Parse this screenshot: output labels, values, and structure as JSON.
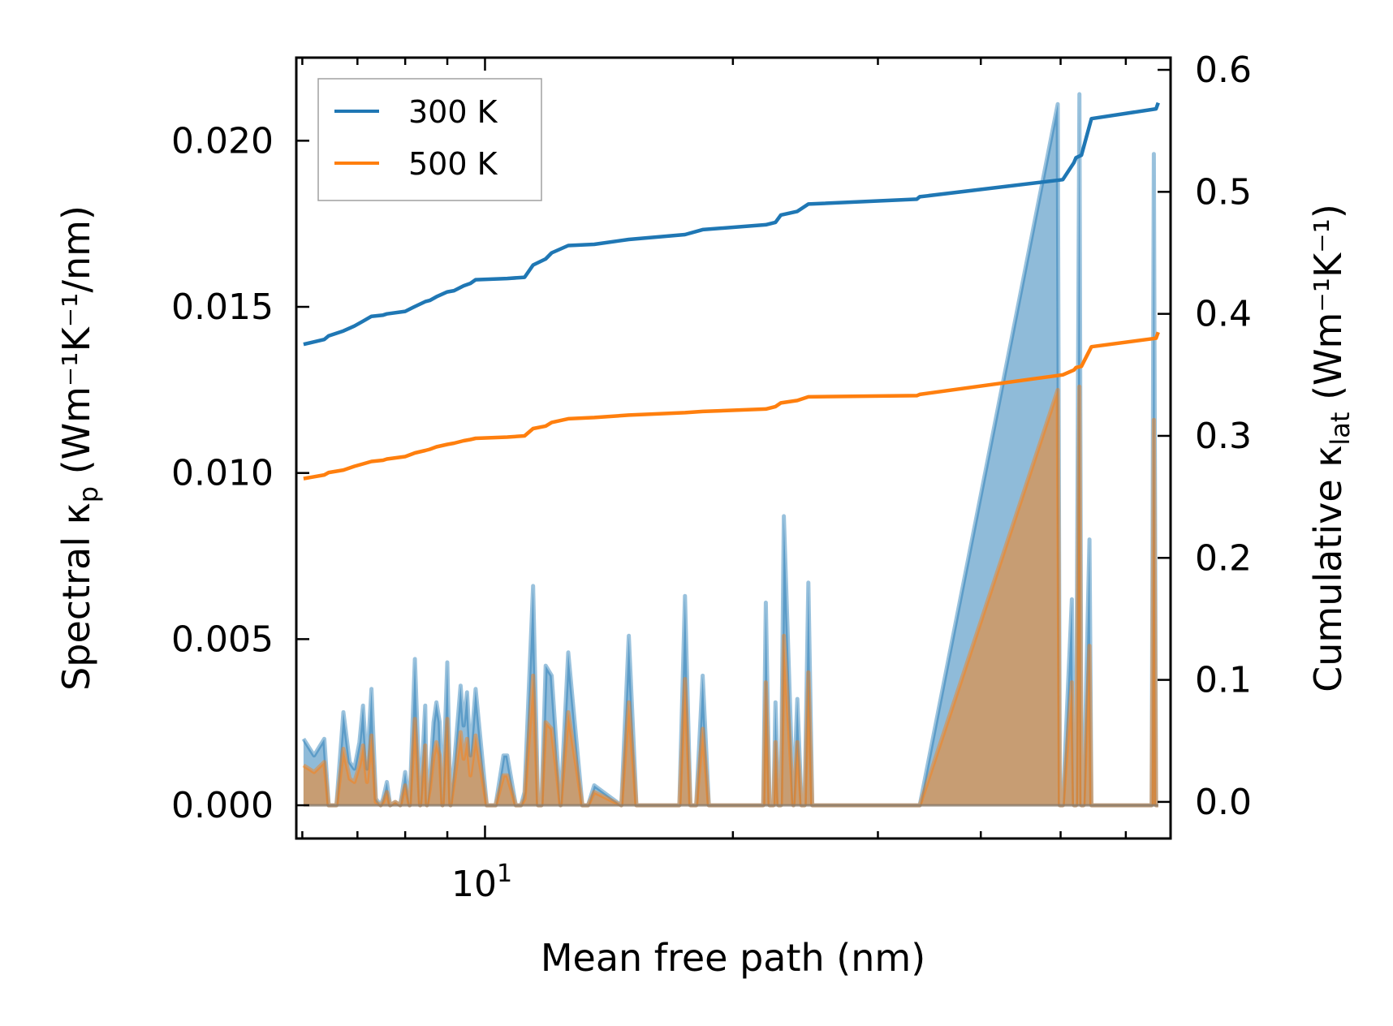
{
  "chart_data": {
    "type": "line",
    "title": "",
    "xlabel": "Mean free path (nm)",
    "ylabel_left": {
      "text": "Spectral κ",
      "sub": "p",
      "unit": "(Wm⁻¹K⁻¹/nm)"
    },
    "ylabel_right": {
      "text": "Cumulative κ",
      "sub": "lat",
      "unit": "(Wm⁻¹K⁻¹)"
    },
    "x_scale": "log",
    "xlim": [
      5.9,
      68
    ],
    "ylim_left": [
      -0.001,
      0.0225
    ],
    "ylim_right": [
      -0.03,
      0.61
    ],
    "x_tick_label": {
      "base": "10",
      "exp": "1"
    },
    "y_ticks_left": [
      {
        "value": 0.0,
        "label": "0.000"
      },
      {
        "value": 0.005,
        "label": "0.005"
      },
      {
        "value": 0.01,
        "label": "0.010"
      },
      {
        "value": 0.015,
        "label": "0.015"
      },
      {
        "value": 0.02,
        "label": "0.020"
      }
    ],
    "y_ticks_right": [
      {
        "value": 0.0,
        "label": "0.0"
      },
      {
        "value": 0.1,
        "label": "0.1"
      },
      {
        "value": 0.2,
        "label": "0.2"
      },
      {
        "value": 0.3,
        "label": "0.3"
      },
      {
        "value": 0.4,
        "label": "0.4"
      },
      {
        "value": 0.5,
        "label": "0.5"
      },
      {
        "value": 0.6,
        "label": "0.6"
      }
    ],
    "legend": {
      "position": "top-left",
      "entries": [
        "300 K",
        "500 K"
      ]
    },
    "series_colors": {
      "300 K": "#1f77b4",
      "500 K": "#ff7f0e"
    },
    "spectral_series": [
      {
        "name": "300 K",
        "axis": "left",
        "x": [
          6.02,
          6.2,
          6.38,
          6.46,
          6.6,
          6.73,
          6.85,
          6.94,
          7.04,
          7.11,
          7.19,
          7.28,
          7.37,
          7.47,
          7.52,
          7.6,
          7.67,
          7.78,
          7.89,
          8.0,
          8.1,
          8.22,
          8.34,
          8.46,
          8.5,
          8.57,
          8.66,
          8.73,
          8.81,
          8.88,
          9.0,
          9.08,
          9.17,
          9.34,
          9.42,
          9.51,
          9.6,
          9.74,
          10.05,
          10.3,
          10.53,
          10.64,
          10.9,
          11.06,
          11.17,
          11.44,
          11.6,
          11.71,
          11.85,
          12.05,
          12.35,
          12.62,
          13.13,
          13.34,
          13.57,
          14.64,
          14.95,
          15.27,
          17.22,
          17.49,
          17.76,
          18.05,
          18.38,
          18.7,
          21.77,
          21.93,
          22.16,
          22.4,
          22.53,
          22.72,
          22.87,
          23.06,
          23.68,
          23.95,
          24.23,
          24.44,
          24.7,
          24.97,
          25.2,
          33.19,
          33.45,
          33.72,
          49.6,
          49.9,
          50.3,
          51.6,
          51.9,
          52.2,
          52.7,
          53.0,
          53.3,
          54.2,
          54.5,
          54.8,
          64.5,
          64.9,
          65.3,
          65.7
        ],
        "y": [
          0.002,
          0.0015,
          0.002,
          0.0,
          0.0,
          0.0028,
          0.0013,
          0.0011,
          0.0019,
          0.003,
          0.0011,
          0.0035,
          0.0002,
          0.0,
          0.0002,
          0.0007,
          0.0,
          0.0001,
          0.0,
          0.001,
          0.0,
          0.0044,
          0.0,
          0.003,
          0.0,
          0.0008,
          0.0025,
          0.0031,
          0.0025,
          0.0,
          0.0043,
          0.0,
          0.0012,
          0.0036,
          0.0024,
          0.0034,
          0.0015,
          0.0035,
          0.0,
          0.0,
          0.0015,
          0.0015,
          0.0,
          0.0,
          0.0004,
          0.0066,
          0.0,
          0.0,
          0.0042,
          0.0039,
          0.0,
          0.0046,
          0.0,
          0.0,
          0.0006,
          0.0,
          0.0051,
          0.0,
          0.0,
          0.0063,
          0.0,
          0.0,
          0.0039,
          0.0,
          0.0,
          0.0061,
          0.0,
          0.0,
          0.0031,
          0.0,
          0.0,
          0.0087,
          0.0,
          0.0032,
          0.0,
          0.0,
          0.0067,
          0.0,
          0.0,
          0.0,
          0.0,
          0.0,
          0.0211,
          0.0,
          0.0,
          0.0062,
          0.0,
          0.0,
          0.0214,
          0.0,
          0.0,
          0.008,
          0.0,
          0.0,
          0.0,
          0.0196,
          0.0,
          0.0
        ]
      },
      {
        "name": "500 K",
        "axis": "left",
        "x": [
          6.02,
          6.2,
          6.38,
          6.46,
          6.6,
          6.73,
          6.85,
          6.94,
          7.04,
          7.11,
          7.19,
          7.28,
          7.37,
          7.47,
          7.52,
          7.6,
          7.67,
          7.78,
          7.89,
          8.0,
          8.1,
          8.22,
          8.34,
          8.46,
          8.5,
          8.57,
          8.66,
          8.73,
          8.81,
          8.88,
          9.0,
          9.08,
          9.17,
          9.34,
          9.42,
          9.51,
          9.6,
          9.74,
          10.05,
          10.3,
          10.53,
          10.64,
          10.9,
          11.06,
          11.17,
          11.44,
          11.6,
          11.71,
          11.85,
          12.05,
          12.35,
          12.62,
          13.13,
          13.34,
          13.57,
          14.64,
          14.95,
          15.27,
          17.22,
          17.49,
          17.76,
          18.05,
          18.38,
          18.7,
          21.77,
          21.93,
          22.16,
          22.4,
          22.53,
          22.72,
          22.87,
          23.06,
          23.68,
          23.95,
          24.23,
          24.44,
          24.7,
          24.97,
          25.2,
          33.19,
          33.45,
          33.72,
          49.6,
          49.9,
          50.3,
          51.6,
          51.9,
          52.2,
          52.7,
          53.0,
          53.3,
          54.2,
          54.5,
          54.8,
          64.5,
          64.9,
          65.3,
          65.7
        ],
        "y": [
          0.0012,
          0.001,
          0.0013,
          0.0,
          0.0,
          0.0017,
          0.0008,
          0.0007,
          0.0012,
          0.0018,
          0.0007,
          0.0021,
          0.0001,
          0.0,
          0.0001,
          0.0004,
          0.0,
          0.0001,
          0.0,
          0.0006,
          0.0,
          0.0026,
          0.0,
          0.0018,
          0.0,
          0.0005,
          0.0015,
          0.0019,
          0.0015,
          0.0,
          0.0026,
          0.0,
          0.0007,
          0.0022,
          0.0014,
          0.002,
          0.0009,
          0.0021,
          0.0,
          0.0,
          0.0009,
          0.0009,
          0.0,
          0.0,
          0.0002,
          0.0039,
          0.0,
          0.0,
          0.0025,
          0.0023,
          0.0,
          0.0028,
          0.0,
          0.0,
          0.0004,
          0.0,
          0.0031,
          0.0,
          0.0,
          0.0038,
          0.0,
          0.0,
          0.0023,
          0.0,
          0.0,
          0.0037,
          0.0,
          0.0,
          0.0019,
          0.0,
          0.0,
          0.0051,
          0.0,
          0.0019,
          0.0,
          0.0,
          0.004,
          0.0,
          0.0,
          0.0,
          0.0,
          0.0,
          0.0125,
          0.0,
          0.0,
          0.0037,
          0.0,
          0.0,
          0.0126,
          0.0,
          0.0,
          0.0048,
          0.0,
          0.0,
          0.0,
          0.0116,
          0.0,
          0.0
        ]
      }
    ],
    "cumulative_series": [
      {
        "name": "300 K",
        "axis": "right",
        "x": [
          6.02,
          6.38,
          6.46,
          6.73,
          6.94,
          7.11,
          7.28,
          7.52,
          7.6,
          8.0,
          8.22,
          8.46,
          8.57,
          8.73,
          9.0,
          9.17,
          9.42,
          9.6,
          9.74,
          10.64,
          11.17,
          11.44,
          11.85,
          12.05,
          12.62,
          13.57,
          14.95,
          17.49,
          18.38,
          21.93,
          22.53,
          22.87,
          23.95,
          24.7,
          33.45,
          33.72,
          50.3,
          51.9,
          52.2,
          53.0,
          54.5,
          65.3,
          65.7
        ],
        "y": [
          0.375,
          0.379,
          0.382,
          0.386,
          0.39,
          0.394,
          0.398,
          0.399,
          0.4,
          0.402,
          0.406,
          0.41,
          0.411,
          0.414,
          0.418,
          0.419,
          0.423,
          0.425,
          0.428,
          0.429,
          0.43,
          0.44,
          0.445,
          0.45,
          0.456,
          0.457,
          0.461,
          0.465,
          0.469,
          0.473,
          0.475,
          0.481,
          0.484,
          0.49,
          0.494,
          0.496,
          0.51,
          0.524,
          0.528,
          0.53,
          0.56,
          0.568,
          0.573
        ]
      },
      {
        "name": "500 K",
        "axis": "right",
        "x": [
          6.02,
          6.38,
          6.46,
          6.73,
          6.94,
          7.11,
          7.28,
          7.52,
          7.6,
          8.0,
          8.22,
          8.46,
          8.57,
          8.73,
          9.0,
          9.17,
          9.42,
          9.6,
          9.74,
          10.64,
          11.17,
          11.44,
          11.85,
          12.05,
          12.62,
          13.57,
          14.95,
          17.49,
          18.38,
          21.93,
          22.53,
          22.87,
          23.95,
          24.7,
          33.45,
          33.72,
          50.3,
          51.9,
          52.2,
          53.0,
          54.5,
          65.3,
          65.7
        ],
        "y": [
          0.265,
          0.268,
          0.27,
          0.272,
          0.275,
          0.277,
          0.279,
          0.28,
          0.281,
          0.283,
          0.286,
          0.288,
          0.289,
          0.291,
          0.293,
          0.294,
          0.296,
          0.297,
          0.298,
          0.299,
          0.3,
          0.306,
          0.308,
          0.311,
          0.314,
          0.315,
          0.317,
          0.319,
          0.32,
          0.322,
          0.324,
          0.327,
          0.329,
          0.332,
          0.333,
          0.334,
          0.35,
          0.354,
          0.356,
          0.357,
          0.373,
          0.38,
          0.385
        ]
      }
    ]
  }
}
